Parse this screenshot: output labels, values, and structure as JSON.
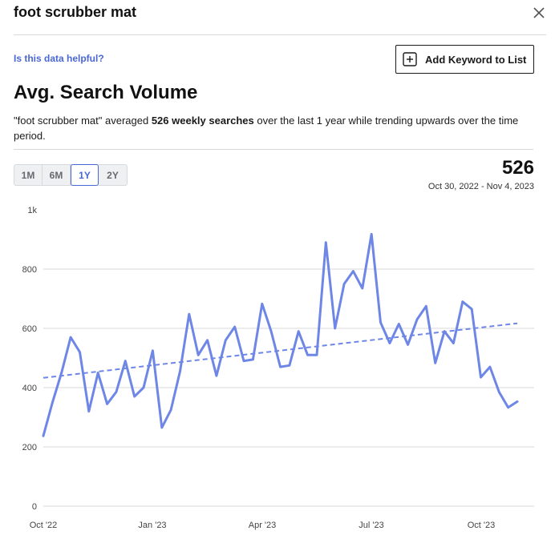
{
  "header": {
    "title": "foot scrubber mat",
    "close_icon": "close-icon"
  },
  "helpful_link": "Is this data helpful?",
  "add_keyword_button": {
    "label": "Add Keyword to List",
    "icon": "plus-square-icon"
  },
  "section": {
    "title": "Avg. Search Volume",
    "description": {
      "part1": "\"foot scrubber mat\" averaged ",
      "bold1": "526 weekly searches",
      "part2": " over the last 1 year while trending upwards over the time period."
    }
  },
  "range_tabs": [
    {
      "label": "1M",
      "active": false
    },
    {
      "label": "6M",
      "active": false
    },
    {
      "label": "1Y",
      "active": true
    },
    {
      "label": "2Y",
      "active": false
    }
  ],
  "summary": {
    "value": "526",
    "date_range": "Oct 30, 2022 - Nov 4, 2023"
  },
  "colors": {
    "line": "#6e86e6",
    "accent": "#4a67d6",
    "grid": "#d9d9d9"
  },
  "chart_data": {
    "type": "line",
    "title": "",
    "xlabel": "",
    "ylabel": "",
    "ylim": [
      0,
      1000
    ],
    "y_ticks": [
      {
        "value": 0,
        "label": "0"
      },
      {
        "value": 200,
        "label": "200"
      },
      {
        "value": 400,
        "label": "400"
      },
      {
        "value": 600,
        "label": "600"
      },
      {
        "value": 800,
        "label": "800"
      },
      {
        "value": 1000,
        "label": "1k"
      }
    ],
    "x_ticks": [
      "Oct '22",
      "Jan '23",
      "Apr '23",
      "Jul '23",
      "Oct '23"
    ],
    "grid": true,
    "series": [
      {
        "values": [
          237,
          350,
          450,
          570,
          520,
          320,
          450,
          345,
          385,
          490,
          370,
          400,
          525,
          265,
          325,
          455,
          648,
          510,
          560,
          440,
          560,
          605,
          490,
          495,
          683,
          590,
          470,
          475,
          590,
          510,
          510,
          890,
          600,
          750,
          793,
          735,
          918,
          620,
          550,
          615,
          545,
          630,
          675,
          483,
          590,
          550,
          690,
          665,
          435,
          470,
          385,
          333,
          353
        ]
      }
    ],
    "trend": {
      "start": 433,
      "end": 617
    }
  }
}
